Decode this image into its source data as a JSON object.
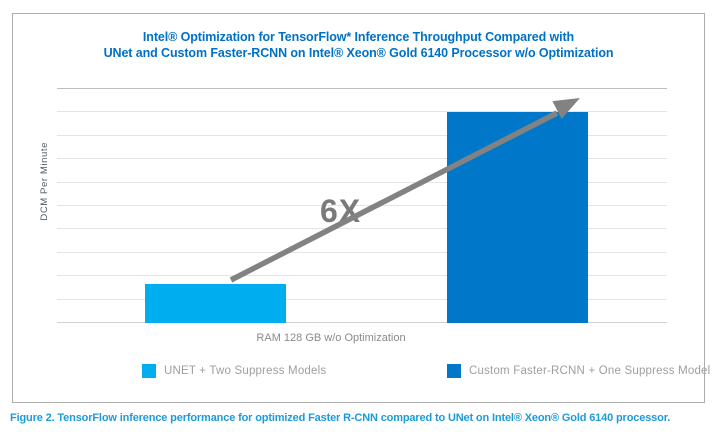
{
  "caption": "Figure 2. TensorFlow inference performance for optimized Faster R-CNN compared to UNet on Intel® Xeon® Gold 6140 processor.",
  "colors": {
    "title_text": "#0071C5",
    "caption_text": "#1D9BD8",
    "unet_bar": "#00AEEF",
    "rcnn_bar": "#0077C8",
    "arrow": "#828282",
    "annotation_text": "#7A7A7A",
    "legend_text": "#9E9E9E",
    "x_axis_label": "#8A8A8A",
    "y_axis_label": "#4E5A66",
    "gridline": "#E4E4E4",
    "frame_border": "#ADADAD"
  },
  "chart_data": {
    "type": "bar",
    "title": "Intel® Optimization for TensorFlow* Inference Throughput Compared with UNet and Custom Faster-RCNN on Intel® Xeon® Gold 6140 Processor w/o Optimization",
    "title_lines": [
      "Intel® Optimization for TensorFlow* Inference Throughput Compared with",
      "UNet and Custom Faster-RCNN on Intel® Xeon® Gold 6140 Processor w/o Optimization"
    ],
    "xlabel": "RAM 128 GB w/o Optimization",
    "ylabel": "DCM Per Minute",
    "categories": [
      "RAM 128 GB w/o Optimization"
    ],
    "series": [
      {
        "name": "UNET + Two Suppress Models",
        "values": [
          1.65
        ],
        "color": "#00AEEF"
      },
      {
        "name": "Custom Faster-RCNN + One Suppress Model",
        "values": [
          9.0
        ],
        "color": "#0077C8"
      }
    ],
    "ylim": [
      0,
      10
    ],
    "y_tick_labels_shown": false,
    "grid": true,
    "grid_intervals": 10,
    "legend_position": "bottom",
    "annotation": {
      "text": "6X",
      "shape": "arrow"
    }
  }
}
